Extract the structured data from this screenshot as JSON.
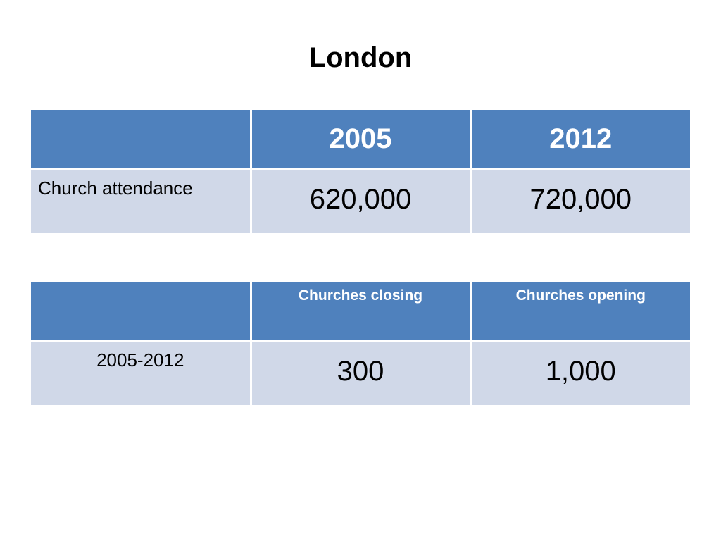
{
  "title": "London",
  "colors": {
    "header_bg": "#4f81bd",
    "row_bg": "#d0d8e8",
    "header_text": "#ffffff"
  },
  "table1": {
    "headers": [
      "",
      "2005",
      "2012"
    ],
    "rows": [
      {
        "label": "Church attendance",
        "values": [
          "620,000",
          "720,000"
        ]
      }
    ]
  },
  "table2": {
    "headers": [
      "",
      "Churches closing",
      "Churches opening"
    ],
    "rows": [
      {
        "label": "2005-2012",
        "values": [
          "300",
          "1,000"
        ]
      }
    ]
  }
}
